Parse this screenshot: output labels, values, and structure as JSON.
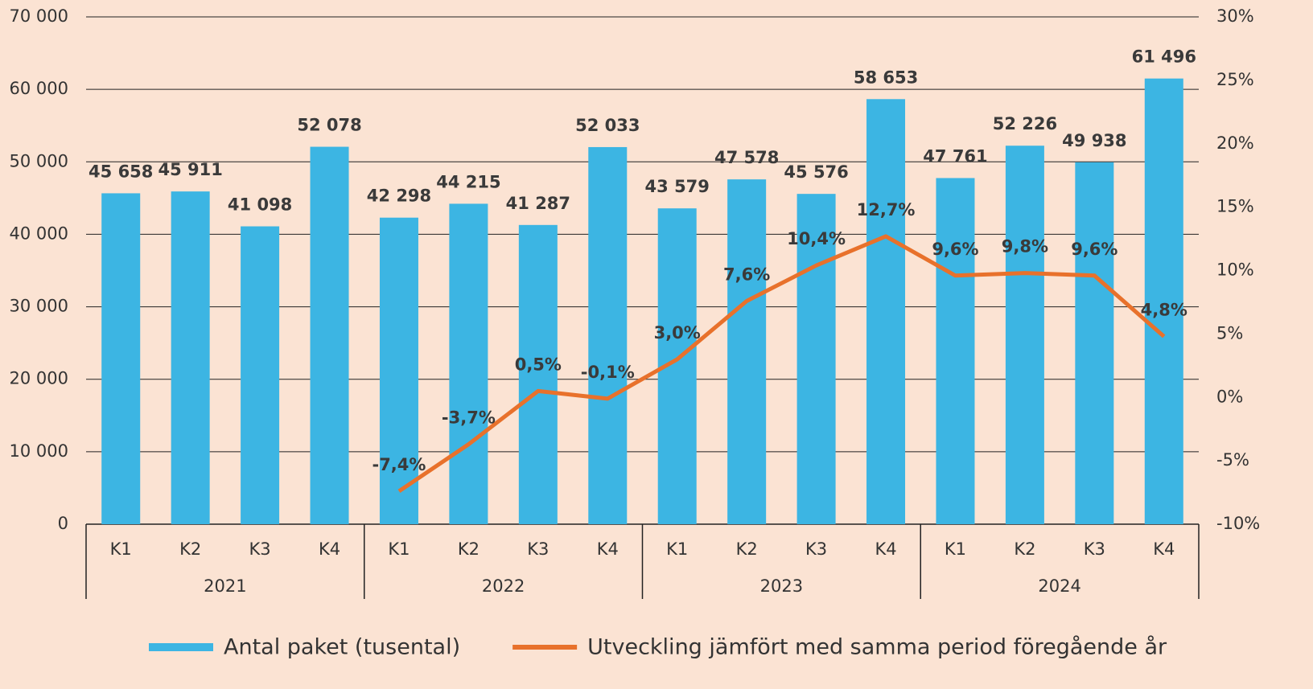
{
  "chart_data": {
    "type": "bar_line",
    "categories": [
      "K1",
      "K2",
      "K3",
      "K4",
      "K1",
      "K2",
      "K3",
      "K4",
      "K1",
      "K2",
      "K3",
      "K4",
      "K1",
      "K2",
      "K3",
      "K4"
    ],
    "x_groups": [
      "2021",
      "2022",
      "2023",
      "2024"
    ],
    "series": [
      {
        "name": "Antal paket (tusental)",
        "type": "bar",
        "color": "#3cb5e3",
        "values": [
          45658,
          45911,
          41098,
          52078,
          42298,
          44215,
          41287,
          52033,
          43579,
          47578,
          45576,
          58653,
          47761,
          52226,
          49938,
          61496
        ],
        "value_labels": [
          "45 658",
          "45 911",
          "41 098",
          "52 078",
          "42 298",
          "44 215",
          "41 287",
          "52 033",
          "43 579",
          "47 578",
          "45 576",
          "58 653",
          "47 761",
          "52 226",
          "49 938",
          "61 496"
        ]
      },
      {
        "name": "Utveckling jämfört med samma period föregående år",
        "type": "line",
        "axis": "y2",
        "color": "#e8712b",
        "values": [
          null,
          null,
          null,
          null,
          -7.4,
          -3.7,
          0.5,
          -0.1,
          3.0,
          7.6,
          10.4,
          12.7,
          9.6,
          9.8,
          9.6,
          4.8
        ],
        "value_labels": [
          null,
          null,
          null,
          null,
          "-7,4%",
          "-3,7%",
          "0,5%",
          "-0,1%",
          "3,0%",
          "7,6%",
          "10,4%",
          "12,7%",
          "9,6%",
          "9,8%",
          "9,6%",
          "4,8%"
        ]
      }
    ],
    "ylim": [
      0,
      70000
    ],
    "yticks": [
      0,
      {
        "value": 10000,
        "label": "10 000"
      },
      {
        "value": 20000,
        "label": "20 000"
      },
      {
        "value": 30000,
        "label": "30 000"
      },
      {
        "value": 40000,
        "label": "40 000"
      },
      {
        "value": 50000,
        "label": "50 000"
      },
      {
        "value": 60000,
        "label": "60 000"
      },
      {
        "value": 70000,
        "label": "70 000"
      }
    ],
    "y2lim": [
      -10,
      30
    ],
    "y2ticks": [
      {
        "value": -10,
        "label": "-10%"
      },
      {
        "value": -5,
        "label": "-5%"
      },
      {
        "value": 0,
        "label": "0%"
      },
      {
        "value": 5,
        "label": "5%"
      },
      {
        "value": 10,
        "label": "10%"
      },
      {
        "value": 15,
        "label": "15%"
      },
      {
        "value": 20,
        "label": "20%"
      },
      {
        "value": 25,
        "label": "25%"
      },
      {
        "value": 30,
        "label": "30%"
      }
    ],
    "grid": true,
    "legend": "bottom"
  }
}
